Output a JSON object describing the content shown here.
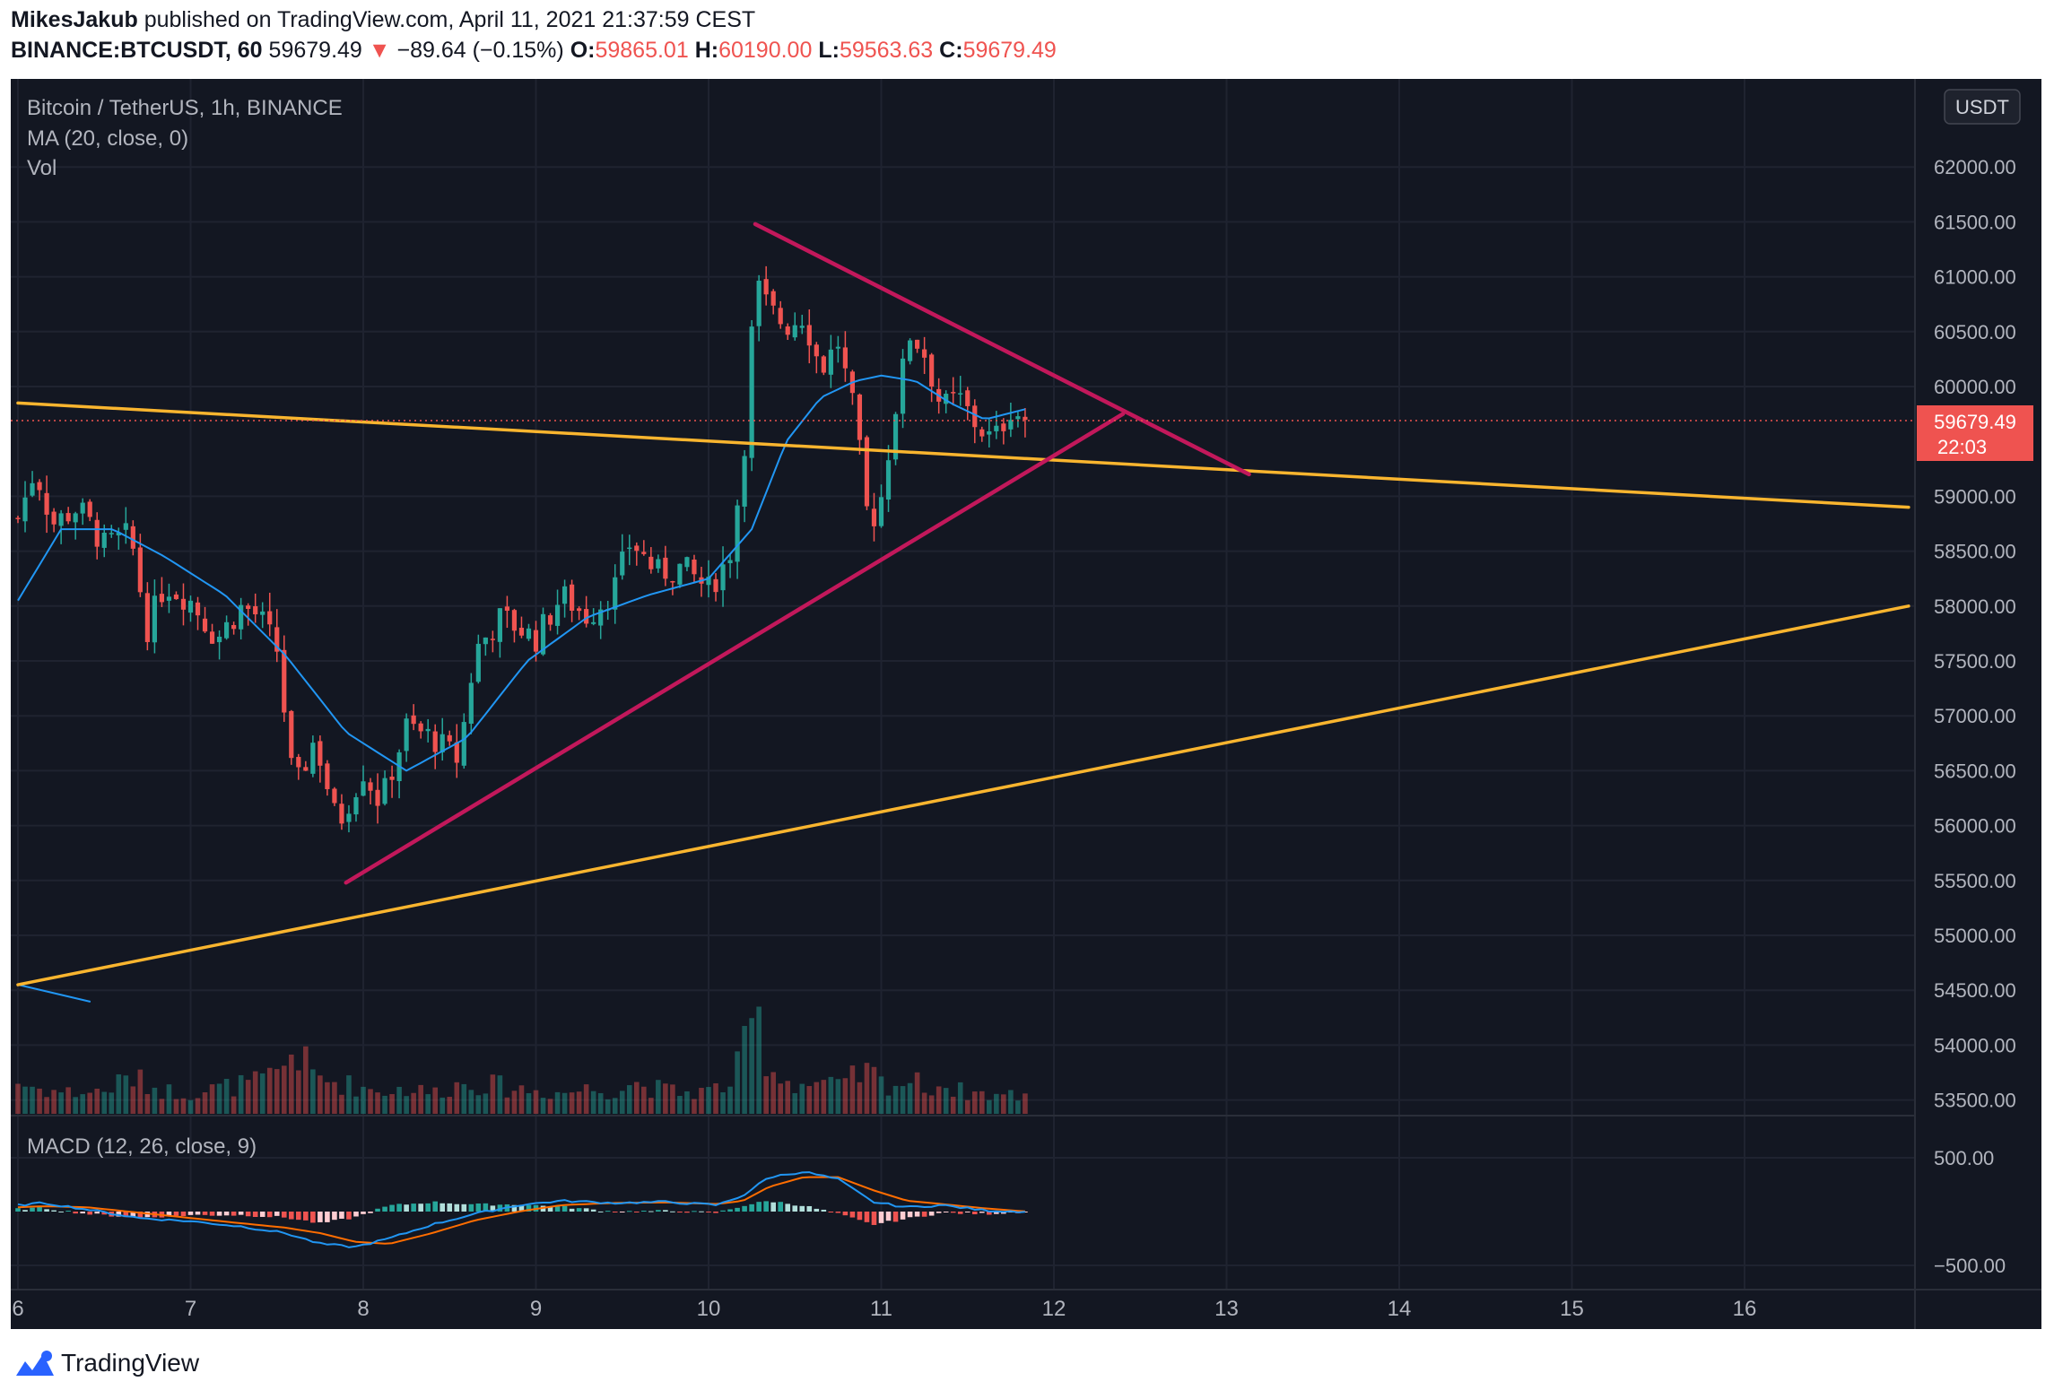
{
  "header": {
    "author": "MikesJakub",
    "published": "published on TradingView.com, April 11, 2021 21:37:59 CEST",
    "symbol": "BINANCE:BTCUSDT, 60",
    "last": "59679.49",
    "arrow": "▼",
    "change": "−89.64 (−0.15%)",
    "o_label": "O:",
    "o_value": "59865.01",
    "h_label": "H:",
    "h_value": "60190.00",
    "l_label": "L:",
    "l_value": "59563.63",
    "c_label": "C:",
    "c_value": "59679.49"
  },
  "legend": {
    "series": "Bitcoin / TetherUS, 1h, BINANCE",
    "ma": "MA (20, close, 0)",
    "vol": "Vol",
    "macd": "MACD (12, 26, close, 9)"
  },
  "currency": "USDT",
  "price_label": {
    "value": "59679.49",
    "countdown": "22:03",
    "color": "#ef5350"
  },
  "footer": {
    "brand": "TradingView"
  },
  "colors": {
    "background": "#131722",
    "up": "#26a69a",
    "down": "#ef5350",
    "ma": "#2196f3",
    "macd_line": "#2196f3",
    "signal_line": "#ff6d00",
    "trendline_yellow": "#f9b52f",
    "triangle": "#c2185b"
  },
  "chart_data": {
    "type": "candlestick",
    "symbol": "BINANCE:BTCUSDT",
    "interval": "1h",
    "y_ticks": [
      "62000.00",
      "61500.00",
      "61000.00",
      "60500.00",
      "60000.00",
      "59000.00",
      "58500.00",
      "58000.00",
      "57500.00",
      "57000.00",
      "56500.00",
      "56000.00",
      "55500.00",
      "55000.00",
      "54500.00",
      "54000.00",
      "53500.00"
    ],
    "x_ticks": [
      "6",
      "7",
      "8",
      "9",
      "10",
      "11",
      "12",
      "13",
      "14",
      "15",
      "16"
    ],
    "macd_ticks": [
      "500.00",
      "−500.00"
    ],
    "ylim": [
      53300,
      62500
    ],
    "anchors": [
      {
        "d": 6.0,
        "c": 58800,
        "v": 0.3
      },
      {
        "d": 6.1,
        "c": 59250,
        "v": 0.25
      },
      {
        "d": 6.2,
        "c": 58750,
        "v": 0.22
      },
      {
        "d": 6.35,
        "c": 58900,
        "v": 0.2
      },
      {
        "d": 6.5,
        "c": 58550,
        "v": 0.22
      },
      {
        "d": 6.65,
        "c": 58650,
        "v": 0.35
      },
      {
        "d": 6.75,
        "c": 57800,
        "v": 0.28
      },
      {
        "d": 6.85,
        "c": 58200,
        "v": 0.22
      },
      {
        "d": 7.0,
        "c": 58050,
        "v": 0.2
      },
      {
        "d": 7.15,
        "c": 57700,
        "v": 0.24
      },
      {
        "d": 7.3,
        "c": 58000,
        "v": 0.28
      },
      {
        "d": 7.4,
        "c": 57900,
        "v": 0.3
      },
      {
        "d": 7.5,
        "c": 57600,
        "v": 0.38
      },
      {
        "d": 7.6,
        "c": 56300,
        "v": 0.62
      },
      {
        "d": 7.72,
        "c": 56800,
        "v": 0.35
      },
      {
        "d": 7.85,
        "c": 56000,
        "v": 0.3
      },
      {
        "d": 8.0,
        "c": 56500,
        "v": 0.25
      },
      {
        "d": 8.1,
        "c": 56200,
        "v": 0.22
      },
      {
        "d": 8.25,
        "c": 56900,
        "v": 0.24
      },
      {
        "d": 8.4,
        "c": 56800,
        "v": 0.2
      },
      {
        "d": 8.55,
        "c": 56600,
        "v": 0.28
      },
      {
        "d": 8.65,
        "c": 57600,
        "v": 0.3
      },
      {
        "d": 8.8,
        "c": 57900,
        "v": 0.26
      },
      {
        "d": 9.0,
        "c": 57700,
        "v": 0.22
      },
      {
        "d": 9.15,
        "c": 58100,
        "v": 0.2
      },
      {
        "d": 9.3,
        "c": 57900,
        "v": 0.24
      },
      {
        "d": 9.45,
        "c": 58150,
        "v": 0.22
      },
      {
        "d": 9.55,
        "c": 58600,
        "v": 0.3
      },
      {
        "d": 9.7,
        "c": 58300,
        "v": 0.24
      },
      {
        "d": 9.85,
        "c": 58350,
        "v": 0.2
      },
      {
        "d": 10.0,
        "c": 58150,
        "v": 0.22
      },
      {
        "d": 10.12,
        "c": 58450,
        "v": 0.28
      },
      {
        "d": 10.2,
        "c": 59300,
        "v": 0.55
      },
      {
        "d": 10.27,
        "c": 60950,
        "v": 1.0
      },
      {
        "d": 10.35,
        "c": 60700,
        "v": 0.45
      },
      {
        "d": 10.45,
        "c": 60550,
        "v": 0.32
      },
      {
        "d": 10.55,
        "c": 60650,
        "v": 0.28
      },
      {
        "d": 10.65,
        "c": 60150,
        "v": 0.3
      },
      {
        "d": 10.75,
        "c": 60400,
        "v": 0.25
      },
      {
        "d": 10.85,
        "c": 59700,
        "v": 0.35
      },
      {
        "d": 10.93,
        "c": 58700,
        "v": 0.4
      },
      {
        "d": 11.0,
        "c": 59000,
        "v": 0.3
      },
      {
        "d": 11.08,
        "c": 59800,
        "v": 0.28
      },
      {
        "d": 11.17,
        "c": 60500,
        "v": 0.32
      },
      {
        "d": 11.25,
        "c": 60300,
        "v": 0.26
      },
      {
        "d": 11.35,
        "c": 59800,
        "v": 0.28
      },
      {
        "d": 11.45,
        "c": 59900,
        "v": 0.22
      },
      {
        "d": 11.55,
        "c": 59650,
        "v": 0.2
      },
      {
        "d": 11.65,
        "c": 59500,
        "v": 0.18
      },
      {
        "d": 11.75,
        "c": 59800,
        "v": 0.18
      },
      {
        "d": 11.85,
        "c": 59679,
        "v": 0.16
      }
    ],
    "ma_anchors": [
      {
        "d": 6.0,
        "v": 58050
      },
      {
        "d": 6.25,
        "v": 58700
      },
      {
        "d": 6.55,
        "v": 58700
      },
      {
        "d": 6.85,
        "v": 58450
      },
      {
        "d": 7.2,
        "v": 58100
      },
      {
        "d": 7.55,
        "v": 57550
      },
      {
        "d": 7.9,
        "v": 56850
      },
      {
        "d": 8.25,
        "v": 56500
      },
      {
        "d": 8.6,
        "v": 56800
      },
      {
        "d": 8.95,
        "v": 57500
      },
      {
        "d": 9.3,
        "v": 57900
      },
      {
        "d": 9.65,
        "v": 58100
      },
      {
        "d": 10.0,
        "v": 58250
      },
      {
        "d": 10.25,
        "v": 58700
      },
      {
        "d": 10.45,
        "v": 59500
      },
      {
        "d": 10.65,
        "v": 59900
      },
      {
        "d": 10.85,
        "v": 60050
      },
      {
        "d": 11.0,
        "v": 60100
      },
      {
        "d": 11.2,
        "v": 60050
      },
      {
        "d": 11.4,
        "v": 59850
      },
      {
        "d": 11.6,
        "v": 59700
      },
      {
        "d": 11.85,
        "v": 59800
      }
    ],
    "macd_anchors": [
      {
        "d": 6.0,
        "m": 60,
        "s": 40
      },
      {
        "d": 6.15,
        "m": 80,
        "s": 50
      },
      {
        "d": 6.4,
        "m": 20,
        "s": 40
      },
      {
        "d": 6.7,
        "m": -60,
        "s": -10
      },
      {
        "d": 7.0,
        "m": -90,
        "s": -60
      },
      {
        "d": 7.3,
        "m": -140,
        "s": -110
      },
      {
        "d": 7.55,
        "m": -200,
        "s": -150
      },
      {
        "d": 7.75,
        "m": -300,
        "s": -200
      },
      {
        "d": 7.95,
        "m": -330,
        "s": -280
      },
      {
        "d": 8.15,
        "m": -250,
        "s": -300
      },
      {
        "d": 8.4,
        "m": -120,
        "s": -200
      },
      {
        "d": 8.65,
        "m": -20,
        "s": -80
      },
      {
        "d": 8.9,
        "m": 60,
        "s": 0
      },
      {
        "d": 9.15,
        "m": 100,
        "s": 60
      },
      {
        "d": 9.45,
        "m": 80,
        "s": 80
      },
      {
        "d": 9.75,
        "m": 90,
        "s": 85
      },
      {
        "d": 10.05,
        "m": 60,
        "s": 70
      },
      {
        "d": 10.2,
        "m": 150,
        "s": 100
      },
      {
        "d": 10.35,
        "m": 320,
        "s": 230
      },
      {
        "d": 10.55,
        "m": 370,
        "s": 320
      },
      {
        "d": 10.75,
        "m": 300,
        "s": 320
      },
      {
        "d": 10.95,
        "m": 90,
        "s": 200
      },
      {
        "d": 11.15,
        "m": 40,
        "s": 100
      },
      {
        "d": 11.35,
        "m": 60,
        "s": 70
      },
      {
        "d": 11.6,
        "m": 10,
        "s": 30
      },
      {
        "d": 11.85,
        "m": 0,
        "s": 0
      }
    ],
    "trendlines": [
      {
        "name": "yellow-resistance",
        "color": "#f9b52f",
        "from": {
          "d": 6.0,
          "p": 59850
        },
        "to": {
          "d": 16.95,
          "p": 58900
        }
      },
      {
        "name": "yellow-support",
        "color": "#f9b52f",
        "from": {
          "d": 6.0,
          "p": 54550
        },
        "to": {
          "d": 16.95,
          "p": 58000
        }
      },
      {
        "name": "triangle-upper",
        "color": "#c2185b",
        "from": {
          "d": 10.27,
          "p": 61480
        },
        "to": {
          "d": 13.13,
          "p": 59200
        }
      },
      {
        "name": "triangle-lower",
        "color": "#c2185b",
        "from": {
          "d": 7.9,
          "p": 55480
        },
        "to": {
          "d": 12.4,
          "p": 59750
        }
      }
    ],
    "current_price": 59679.49,
    "grid": true
  }
}
